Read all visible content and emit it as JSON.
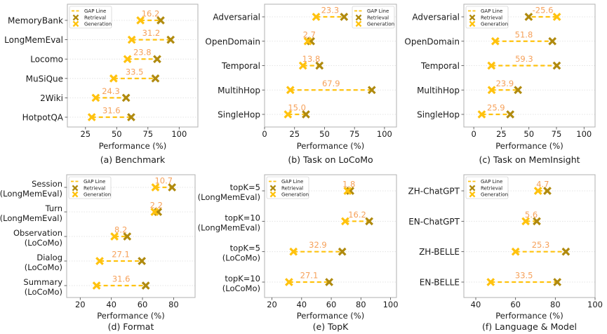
{
  "colors": {
    "retrieval": "#B08A0E",
    "generation": "#FFC20E",
    "gap_line": "#FFC20E",
    "gap_label": "#F6A15A",
    "frame": "#b0b0b0",
    "grid": "#dddddd",
    "text": "#1a1a1a"
  },
  "legend": {
    "gap_line": "GAP Line",
    "retrieval": "Retrieval",
    "generation": "Generation"
  },
  "chart_data": [
    {
      "id": "a",
      "type": "dumbbell",
      "title": "(a) Benchmark",
      "xlabel": "Performance (%)",
      "xlim": [
        10.5,
        115
      ],
      "xticks": [
        25,
        50,
        75,
        100
      ],
      "legend_position": "top-left",
      "grid": "horizontal-dotted",
      "categories": [
        {
          "label": [
            "MemoryBank"
          ],
          "generation": 69.0,
          "retrieval": 85.2,
          "gap": "16.2"
        },
        {
          "label": [
            "LongMemEval"
          ],
          "generation": 62.0,
          "retrieval": 93.2,
          "gap": "31.2"
        },
        {
          "label": [
            "Locomo"
          ],
          "generation": 58.6,
          "retrieval": 82.4,
          "gap": "23.8"
        },
        {
          "label": [
            "MuSiQue"
          ],
          "generation": 47.5,
          "retrieval": 81.0,
          "gap": "33.5"
        },
        {
          "label": [
            "2Wiki"
          ],
          "generation": 33.2,
          "retrieval": 57.5,
          "gap": "24.3"
        },
        {
          "label": [
            "HotpotQA"
          ],
          "generation": 30.0,
          "retrieval": 61.6,
          "gap": "31.6"
        }
      ]
    },
    {
      "id": "b",
      "type": "dumbbell",
      "title": "(b) Task on LoCoMo",
      "xlabel": "Performance (%)",
      "xlim": [
        0,
        110
      ],
      "xticks": [
        0,
        25,
        50,
        75,
        100
      ],
      "legend_position": "top-right",
      "grid": "horizontal-dotted",
      "categories": [
        {
          "label": [
            "Adversarial"
          ],
          "generation": 43.0,
          "retrieval": 66.3,
          "gap": "23.3"
        },
        {
          "label": [
            "OpenDomain"
          ],
          "generation": 36.0,
          "retrieval": 38.7,
          "gap": "2.7"
        },
        {
          "label": [
            "Temporal"
          ],
          "generation": 32.0,
          "retrieval": 45.8,
          "gap": "13.8"
        },
        {
          "label": [
            "MultihHop"
          ],
          "generation": 21.5,
          "retrieval": 89.4,
          "gap": "67.9"
        },
        {
          "label": [
            "SingleHop"
          ],
          "generation": 19.5,
          "retrieval": 34.5,
          "gap": "15.0"
        }
      ]
    },
    {
      "id": "c",
      "type": "dumbbell",
      "title": "(c) Task on MemInsight",
      "xlabel": "Performance (%)",
      "xlim": [
        -9,
        110
      ],
      "xticks": [
        0,
        25,
        50,
        75,
        100
      ],
      "legend_position": "top-left",
      "grid": "horizontal-dotted",
      "categories": [
        {
          "label": [
            "Adversarial"
          ],
          "generation": 75.4,
          "retrieval": 49.8,
          "gap": "-25.6"
        },
        {
          "label": [
            "OpenDomain"
          ],
          "generation": 19.5,
          "retrieval": 71.3,
          "gap": "51.8"
        },
        {
          "label": [
            "Temporal"
          ],
          "generation": 16.0,
          "retrieval": 75.3,
          "gap": "59.3"
        },
        {
          "label": [
            "MultihHop"
          ],
          "generation": 16.2,
          "retrieval": 40.1,
          "gap": "23.9"
        },
        {
          "label": [
            "SingleHop"
          ],
          "generation": 7.2,
          "retrieval": 33.1,
          "gap": "25.9"
        }
      ]
    },
    {
      "id": "d",
      "type": "dumbbell",
      "title": "(d) Format",
      "xlabel": "Performance (%)",
      "xlim": [
        11.3,
        93.8
      ],
      "xticks": [
        20,
        40,
        60,
        80
      ],
      "legend_position": "top-left",
      "grid": "horizontal-dotted",
      "categories": [
        {
          "label": [
            "Session",
            "(LongMemEval)"
          ],
          "generation": 68.3,
          "retrieval": 79.0,
          "gap": "10.7"
        },
        {
          "label": [
            "Turn",
            "(LongMemEval)"
          ],
          "generation": 67.8,
          "retrieval": 70.0,
          "gap": "2.2"
        },
        {
          "label": [
            "Observation",
            "(LoCoMo)"
          ],
          "generation": 42.0,
          "retrieval": 50.2,
          "gap": "8.2"
        },
        {
          "label": [
            "Dialog",
            "(LoCoMo)"
          ],
          "generation": 32.5,
          "retrieval": 59.6,
          "gap": "27.1"
        },
        {
          "label": [
            "Summary",
            "(LoCoMo)"
          ],
          "generation": 30.5,
          "retrieval": 62.1,
          "gap": "31.6"
        }
      ]
    },
    {
      "id": "e",
      "type": "dumbbell",
      "title": "(e) TopK",
      "xlabel": "Performance (%)",
      "xlim": [
        15,
        104
      ],
      "xticks": [
        20,
        40,
        60,
        80,
        100
      ],
      "legend_position": "top-left",
      "grid": "horizontal-dotted",
      "categories": [
        {
          "label": [
            "topK=5",
            "(LongMemEval)"
          ],
          "generation": 71.0,
          "retrieval": 72.8,
          "gap": "1.8"
        },
        {
          "label": [
            "topK=10",
            "(LongMemEval)"
          ],
          "generation": 69.4,
          "retrieval": 85.6,
          "gap": "16.2"
        },
        {
          "label": [
            "topK=5",
            "(LoCoMo)"
          ],
          "generation": 34.5,
          "retrieval": 67.4,
          "gap": "32.9"
        },
        {
          "label": [
            "topK=10",
            "(LoCoMo)"
          ],
          "generation": 31.5,
          "retrieval": 58.6,
          "gap": "27.1"
        }
      ]
    },
    {
      "id": "f",
      "type": "dumbbell",
      "title": "(f) Language & Model",
      "xlabel": "Performance (%)",
      "xlim": [
        34,
        100
      ],
      "xticks": [
        40,
        60,
        80,
        100
      ],
      "legend_position": "top-left",
      "grid": "horizontal-dotted",
      "categories": [
        {
          "label": [
            "ZH-ChatGPT"
          ],
          "generation": 71.3,
          "retrieval": 76.0,
          "gap": "4.7"
        },
        {
          "label": [
            "EN-ChatGPT"
          ],
          "generation": 65.1,
          "retrieval": 70.7,
          "gap": "5.6"
        },
        {
          "label": [
            "ZH-BELLE"
          ],
          "generation": 60.0,
          "retrieval": 85.3,
          "gap": "25.3"
        },
        {
          "label": [
            "EN-BELLE"
          ],
          "generation": 47.5,
          "retrieval": 81.0,
          "gap": "33.5"
        }
      ]
    }
  ]
}
